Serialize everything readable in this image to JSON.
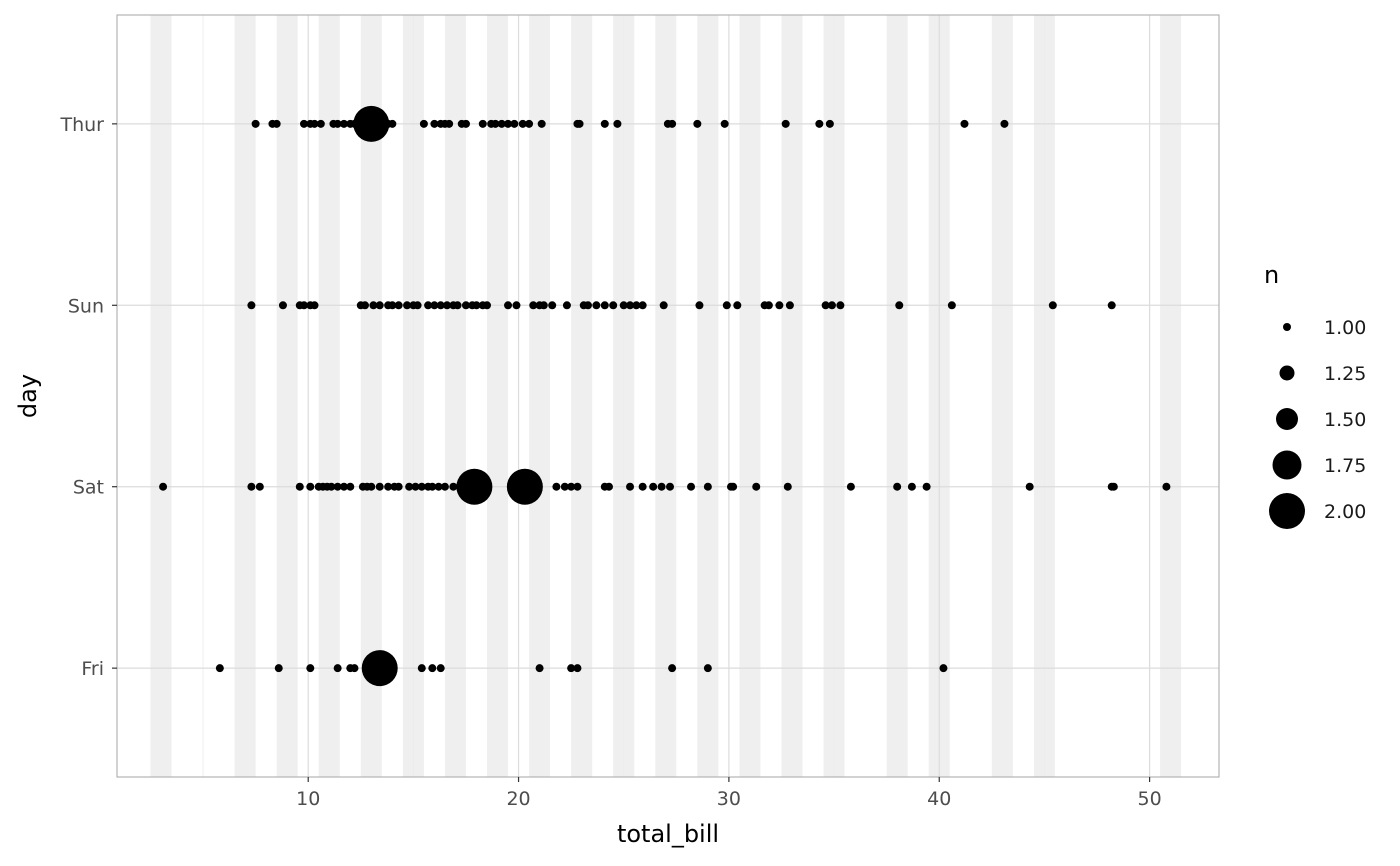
{
  "chart_data": {
    "type": "scatter",
    "xlabel": "total_bill",
    "ylabel": "day",
    "xlim": [
      0.91,
      53.3
    ],
    "x_ticks": [
      10,
      20,
      30,
      40,
      50
    ],
    "categories": [
      "Fri",
      "Sat",
      "Sun",
      "Thur"
    ],
    "grid": true,
    "background_stripes": [
      [
        2.5,
        3.5
      ],
      [
        6.5,
        7.5
      ],
      [
        8.5,
        9.5
      ],
      [
        10.5,
        11.5
      ],
      [
        12.5,
        13.5
      ],
      [
        14.5,
        15.5
      ],
      [
        16.5,
        17.5
      ],
      [
        18.5,
        19.5
      ],
      [
        20.5,
        21.5
      ],
      [
        22.5,
        23.5
      ],
      [
        24.5,
        25.5
      ],
      [
        26.5,
        27.5
      ],
      [
        28.5,
        29.5
      ],
      [
        30.5,
        31.5
      ],
      [
        32.5,
        33.5
      ],
      [
        34.5,
        35.5
      ],
      [
        37.5,
        38.5
      ],
      [
        39.5,
        40.5
      ],
      [
        42.5,
        43.5
      ],
      [
        44.5,
        45.5
      ],
      [
        50.5,
        51.5
      ]
    ],
    "series": [
      {
        "category": "Thur",
        "points": [
          [
            7.5,
            1
          ],
          [
            8.3,
            1
          ],
          [
            8.5,
            1
          ],
          [
            9.8,
            1
          ],
          [
            10.1,
            1
          ],
          [
            10.3,
            1
          ],
          [
            10.6,
            1
          ],
          [
            11.2,
            1
          ],
          [
            11.4,
            1
          ],
          [
            11.7,
            1
          ],
          [
            12.0,
            1
          ],
          [
            12.2,
            1
          ],
          [
            13.0,
            2
          ],
          [
            13.4,
            1
          ],
          [
            13.8,
            1
          ],
          [
            14.0,
            1
          ],
          [
            15.5,
            1
          ],
          [
            16.0,
            1
          ],
          [
            16.3,
            1
          ],
          [
            16.5,
            1
          ],
          [
            16.7,
            1
          ],
          [
            17.3,
            1
          ],
          [
            17.5,
            1
          ],
          [
            18.3,
            1
          ],
          [
            18.7,
            1
          ],
          [
            18.9,
            1
          ],
          [
            19.2,
            1
          ],
          [
            19.5,
            1
          ],
          [
            19.8,
            1
          ],
          [
            20.2,
            1
          ],
          [
            20.5,
            1
          ],
          [
            21.1,
            1
          ],
          [
            22.8,
            1
          ],
          [
            22.9,
            1
          ],
          [
            24.1,
            1
          ],
          [
            24.7,
            1
          ],
          [
            27.1,
            1
          ],
          [
            27.3,
            1
          ],
          [
            28.5,
            1
          ],
          [
            29.8,
            1
          ],
          [
            32.7,
            1
          ],
          [
            34.3,
            1
          ],
          [
            34.8,
            1
          ],
          [
            41.2,
            1
          ],
          [
            43.1,
            1
          ]
        ]
      },
      {
        "category": "Sun",
        "points": [
          [
            7.3,
            1
          ],
          [
            8.8,
            1
          ],
          [
            9.6,
            1
          ],
          [
            9.8,
            1
          ],
          [
            10.1,
            1
          ],
          [
            10.3,
            1
          ],
          [
            12.5,
            1
          ],
          [
            12.7,
            1
          ],
          [
            13.1,
            1
          ],
          [
            13.4,
            1
          ],
          [
            13.8,
            1
          ],
          [
            14.0,
            1
          ],
          [
            14.3,
            1
          ],
          [
            14.7,
            1
          ],
          [
            15.0,
            1
          ],
          [
            15.2,
            1
          ],
          [
            15.7,
            1
          ],
          [
            16.0,
            1
          ],
          [
            16.3,
            1
          ],
          [
            16.6,
            1
          ],
          [
            16.9,
            1
          ],
          [
            17.1,
            1
          ],
          [
            17.5,
            1
          ],
          [
            17.8,
            1
          ],
          [
            18.0,
            1
          ],
          [
            18.3,
            1
          ],
          [
            18.5,
            1
          ],
          [
            19.5,
            1
          ],
          [
            19.9,
            1
          ],
          [
            20.7,
            1
          ],
          [
            21.0,
            1
          ],
          [
            21.2,
            1
          ],
          [
            21.6,
            1
          ],
          [
            22.3,
            1
          ],
          [
            23.1,
            1
          ],
          [
            23.3,
            1
          ],
          [
            23.7,
            1
          ],
          [
            24.1,
            1
          ],
          [
            24.5,
            1
          ],
          [
            25.0,
            1
          ],
          [
            25.3,
            1
          ],
          [
            25.6,
            1
          ],
          [
            25.9,
            1
          ],
          [
            26.9,
            1
          ],
          [
            28.6,
            1
          ],
          [
            29.9,
            1
          ],
          [
            30.4,
            1
          ],
          [
            31.7,
            1
          ],
          [
            31.9,
            1
          ],
          [
            32.4,
            1
          ],
          [
            32.9,
            1
          ],
          [
            34.6,
            1
          ],
          [
            34.9,
            1
          ],
          [
            35.3,
            1
          ],
          [
            38.1,
            1
          ],
          [
            40.6,
            1
          ],
          [
            45.4,
            1
          ],
          [
            48.2,
            1
          ]
        ]
      },
      {
        "category": "Sat",
        "points": [
          [
            3.1,
            1
          ],
          [
            7.3,
            1
          ],
          [
            7.7,
            1
          ],
          [
            9.6,
            1
          ],
          [
            10.1,
            1
          ],
          [
            10.5,
            1
          ],
          [
            10.7,
            1
          ],
          [
            10.9,
            1
          ],
          [
            11.1,
            1
          ],
          [
            11.4,
            1
          ],
          [
            11.7,
            1
          ],
          [
            12.0,
            1
          ],
          [
            12.6,
            1
          ],
          [
            12.8,
            1
          ],
          [
            13.0,
            1
          ],
          [
            13.4,
            1
          ],
          [
            13.8,
            1
          ],
          [
            14.1,
            1
          ],
          [
            14.3,
            1
          ],
          [
            14.8,
            1
          ],
          [
            15.1,
            1
          ],
          [
            15.4,
            1
          ],
          [
            15.7,
            1
          ],
          [
            15.9,
            1
          ],
          [
            16.2,
            1
          ],
          [
            16.5,
            1
          ],
          [
            16.9,
            1
          ],
          [
            17.9,
            2
          ],
          [
            20.3,
            2
          ],
          [
            21.8,
            1
          ],
          [
            22.2,
            1
          ],
          [
            22.5,
            1
          ],
          [
            22.8,
            1
          ],
          [
            24.1,
            1
          ],
          [
            24.3,
            1
          ],
          [
            25.3,
            1
          ],
          [
            25.9,
            1
          ],
          [
            26.4,
            1
          ],
          [
            26.8,
            1
          ],
          [
            27.2,
            1
          ],
          [
            28.2,
            1
          ],
          [
            29.0,
            1
          ],
          [
            30.1,
            1
          ],
          [
            30.2,
            1
          ],
          [
            31.3,
            1
          ],
          [
            32.8,
            1
          ],
          [
            35.8,
            1
          ],
          [
            38.0,
            1
          ],
          [
            38.7,
            1
          ],
          [
            39.4,
            1
          ],
          [
            44.3,
            1
          ],
          [
            48.2,
            1
          ],
          [
            48.3,
            1
          ],
          [
            50.8,
            1
          ]
        ]
      },
      {
        "category": "Fri",
        "points": [
          [
            5.8,
            1
          ],
          [
            8.6,
            1
          ],
          [
            10.1,
            1
          ],
          [
            11.4,
            1
          ],
          [
            12.0,
            1
          ],
          [
            12.2,
            1
          ],
          [
            13.4,
            2
          ],
          [
            15.4,
            1
          ],
          [
            15.9,
            1
          ],
          [
            16.3,
            1
          ],
          [
            21.0,
            1
          ],
          [
            22.5,
            1
          ],
          [
            22.8,
            1
          ],
          [
            27.3,
            1
          ],
          [
            29.0,
            1
          ],
          [
            40.2,
            1
          ]
        ]
      }
    ],
    "legend": {
      "title": "n",
      "placement": "right",
      "entries": [
        {
          "label": "1.00",
          "value": 1.0
        },
        {
          "label": "1.25",
          "value": 1.25
        },
        {
          "label": "1.50",
          "value": 1.5
        },
        {
          "label": "1.75",
          "value": 1.75
        },
        {
          "label": "2.00",
          "value": 2.0
        }
      ]
    },
    "colors": {
      "point": "#000000",
      "stripe": "#efefef",
      "grid": "#dcdcdc",
      "panel_border": "#b3b3b3"
    }
  }
}
